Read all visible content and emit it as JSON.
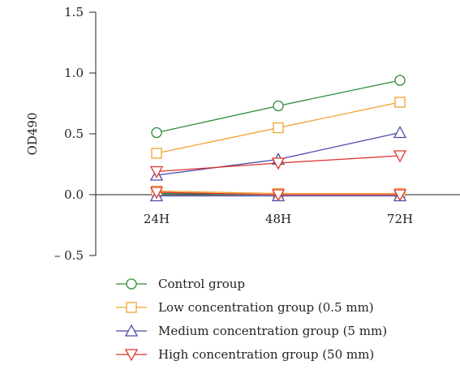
{
  "chart_data": {
    "type": "line",
    "title": "",
    "xlabel": "",
    "ylabel": "OD490",
    "categories": [
      "24H",
      "48H",
      "72H"
    ],
    "ylim": [
      -0.5,
      1.5
    ],
    "yticks": [
      {
        "value": 1.5,
        "label": "1.5"
      },
      {
        "value": 1.0,
        "label": "1.0"
      },
      {
        "value": 0.5,
        "label": "0.5"
      },
      {
        "value": 0.0,
        "label": "0.0"
      },
      {
        "value": -0.5,
        "label": "– 0.5"
      }
    ],
    "grid": false,
    "legend_position": "bottom",
    "series": [
      {
        "name": "Control group",
        "marker": "circle",
        "color": "#2e8b3a",
        "values": [
          0.51,
          0.73,
          0.94
        ]
      },
      {
        "name": "Low concentration group (0.5 mm)",
        "marker": "square",
        "color": "#f0a030",
        "values": [
          0.34,
          0.55,
          0.76
        ]
      },
      {
        "name": "Medium concentration group (5 mm)",
        "marker": "triangle-up",
        "color": "#4b4ba8",
        "values": [
          0.16,
          0.29,
          0.51
        ]
      },
      {
        "name": "High concentration group (50 mm)",
        "marker": "triangle-down",
        "color": "#e0302a",
        "values": [
          0.19,
          0.26,
          0.32
        ]
      }
    ],
    "baseline_series": [
      {
        "marker": "circle",
        "color": "#2e8b3a",
        "values": [
          0.01,
          0.0,
          0.0
        ]
      },
      {
        "marker": "square",
        "color": "#f0a030",
        "values": [
          0.03,
          0.01,
          0.01
        ]
      },
      {
        "marker": "triangle-up",
        "color": "#4b4ba8",
        "values": [
          -0.01,
          -0.01,
          -0.01
        ]
      },
      {
        "marker": "triangle-down",
        "color": "#e0302a",
        "values": [
          0.02,
          0.0,
          0.0
        ]
      }
    ]
  }
}
